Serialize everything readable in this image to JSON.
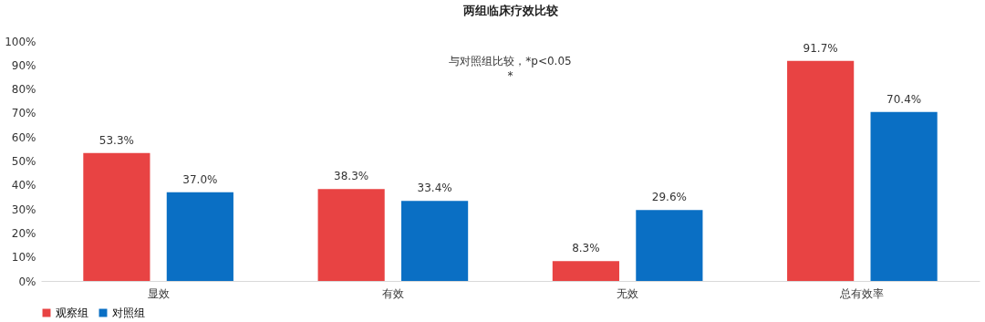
{
  "chart_data": {
    "type": "bar",
    "title": "两组临床疗效比较",
    "categories": [
      "显效",
      "有效",
      "无效",
      "总有效率"
    ],
    "series": [
      {
        "name": "观察组",
        "color": "#e84343",
        "values": [
          53.3,
          38.3,
          8.3,
          91.7
        ],
        "value_labels": [
          "53.3%",
          "38.3%",
          "8.3%",
          "91.7%"
        ]
      },
      {
        "name": "对照组",
        "color": "#0a6fc4",
        "values": [
          37.0,
          33.4,
          29.6,
          70.4
        ],
        "value_labels": [
          "37.0%",
          "33.4%",
          "29.6%",
          "70.4%"
        ]
      }
    ],
    "ylim": [
      0,
      100
    ],
    "yticks": [
      {
        "value": 0,
        "label": "0%"
      },
      {
        "value": 10,
        "label": "10%"
      },
      {
        "value": 20,
        "label": "20%"
      },
      {
        "value": 30,
        "label": "30%"
      },
      {
        "value": 40,
        "label": "40%"
      },
      {
        "value": 50,
        "label": "50%"
      },
      {
        "value": 60,
        "label": "60%"
      },
      {
        "value": 70,
        "label": "70%"
      },
      {
        "value": 80,
        "label": "80%"
      },
      {
        "value": 90,
        "label": "90%"
      },
      {
        "value": 100,
        "label": "100%"
      }
    ],
    "grid": false,
    "legend": "bottom",
    "annotations": [
      "与对照组比较，*p<0.05",
      "*"
    ]
  }
}
